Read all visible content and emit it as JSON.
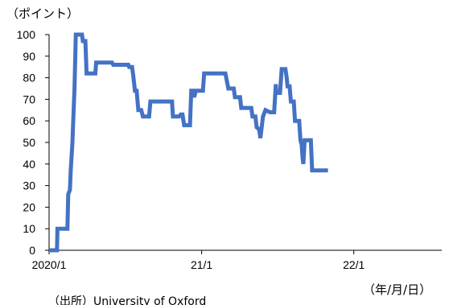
{
  "chart_data": {
    "type": "line",
    "title": "",
    "y_unit_label": "（ポイント）",
    "x_unit_label": "（年/月/日）",
    "source_text": "（出所）University of Oxford",
    "ylim": [
      0,
      100
    ],
    "y_ticks": [
      "0",
      "10",
      "20",
      "30",
      "40",
      "50",
      "60",
      "70",
      "80",
      "90",
      "100"
    ],
    "x_ticks": [
      {
        "label": "2020/1",
        "date": "2020-01-01"
      },
      {
        "label": "21/1",
        "date": "2021-01-01"
      },
      {
        "label": "22/1",
        "date": "2022-01-01"
      }
    ],
    "x_range": [
      "2020-01-01",
      "2022-07-31"
    ],
    "grid": false,
    "series_color": "#4472C4",
    "series": [
      {
        "points": [
          [
            "2020-01-01",
            0
          ],
          [
            "2020-01-20",
            0
          ],
          [
            "2020-01-21",
            10
          ],
          [
            "2020-02-14",
            10
          ],
          [
            "2020-02-16",
            26
          ],
          [
            "2020-02-20",
            28
          ],
          [
            "2020-02-22",
            37
          ],
          [
            "2020-02-26",
            50
          ],
          [
            "2020-02-28",
            60
          ],
          [
            "2020-03-02",
            75
          ],
          [
            "2020-03-05",
            100
          ],
          [
            "2020-03-20",
            100
          ],
          [
            "2020-03-22",
            97
          ],
          [
            "2020-03-28",
            97
          ],
          [
            "2020-03-31",
            82
          ],
          [
            "2020-04-21",
            82
          ],
          [
            "2020-04-23",
            87
          ],
          [
            "2020-05-31",
            87
          ],
          [
            "2020-06-03",
            86
          ],
          [
            "2020-07-09",
            86
          ],
          [
            "2020-07-11",
            85
          ],
          [
            "2020-07-18",
            85
          ],
          [
            "2020-07-21",
            81
          ],
          [
            "2020-07-25",
            74
          ],
          [
            "2020-07-29",
            74
          ],
          [
            "2020-08-02",
            65
          ],
          [
            "2020-08-09",
            65
          ],
          [
            "2020-08-13",
            62
          ],
          [
            "2020-08-28",
            62
          ],
          [
            "2020-08-31",
            69
          ],
          [
            "2020-10-22",
            69
          ],
          [
            "2020-10-24",
            62
          ],
          [
            "2020-11-08",
            62
          ],
          [
            "2020-11-12",
            63
          ],
          [
            "2020-11-16",
            63
          ],
          [
            "2020-11-20",
            58
          ],
          [
            "2020-12-04",
            58
          ],
          [
            "2020-12-07",
            74
          ],
          [
            "2020-12-11",
            74
          ],
          [
            "2020-12-14",
            71
          ],
          [
            "2020-12-18",
            74
          ],
          [
            "2021-01-04",
            74
          ],
          [
            "2021-01-07",
            82
          ],
          [
            "2021-02-27",
            82
          ],
          [
            "2021-03-03",
            78
          ],
          [
            "2021-03-06",
            75
          ],
          [
            "2021-03-19",
            75
          ],
          [
            "2021-03-22",
            71
          ],
          [
            "2021-04-03",
            71
          ],
          [
            "2021-04-06",
            66
          ],
          [
            "2021-04-30",
            66
          ],
          [
            "2021-05-03",
            62
          ],
          [
            "2021-05-10",
            62
          ],
          [
            "2021-05-13",
            57
          ],
          [
            "2021-05-19",
            56
          ],
          [
            "2021-05-22",
            52
          ],
          [
            "2021-05-25",
            57
          ],
          [
            "2021-05-28",
            62
          ],
          [
            "2021-06-03",
            65
          ],
          [
            "2021-06-14",
            64
          ],
          [
            "2021-06-24",
            64
          ],
          [
            "2021-06-28",
            77
          ],
          [
            "2021-06-29",
            73
          ],
          [
            "2021-07-08",
            73
          ],
          [
            "2021-07-12",
            84
          ],
          [
            "2021-07-21",
            84
          ],
          [
            "2021-07-24",
            80
          ],
          [
            "2021-07-26",
            76
          ],
          [
            "2021-07-31",
            76
          ],
          [
            "2021-08-03",
            69
          ],
          [
            "2021-08-10",
            69
          ],
          [
            "2021-08-13",
            60
          ],
          [
            "2021-08-23",
            60
          ],
          [
            "2021-08-26",
            51
          ],
          [
            "2021-08-29",
            49
          ],
          [
            "2021-08-31",
            43
          ],
          [
            "2021-09-02",
            40
          ],
          [
            "2021-09-05",
            51
          ],
          [
            "2021-09-20",
            51
          ],
          [
            "2021-09-23",
            37
          ],
          [
            "2021-10-31",
            37
          ]
        ]
      }
    ]
  }
}
